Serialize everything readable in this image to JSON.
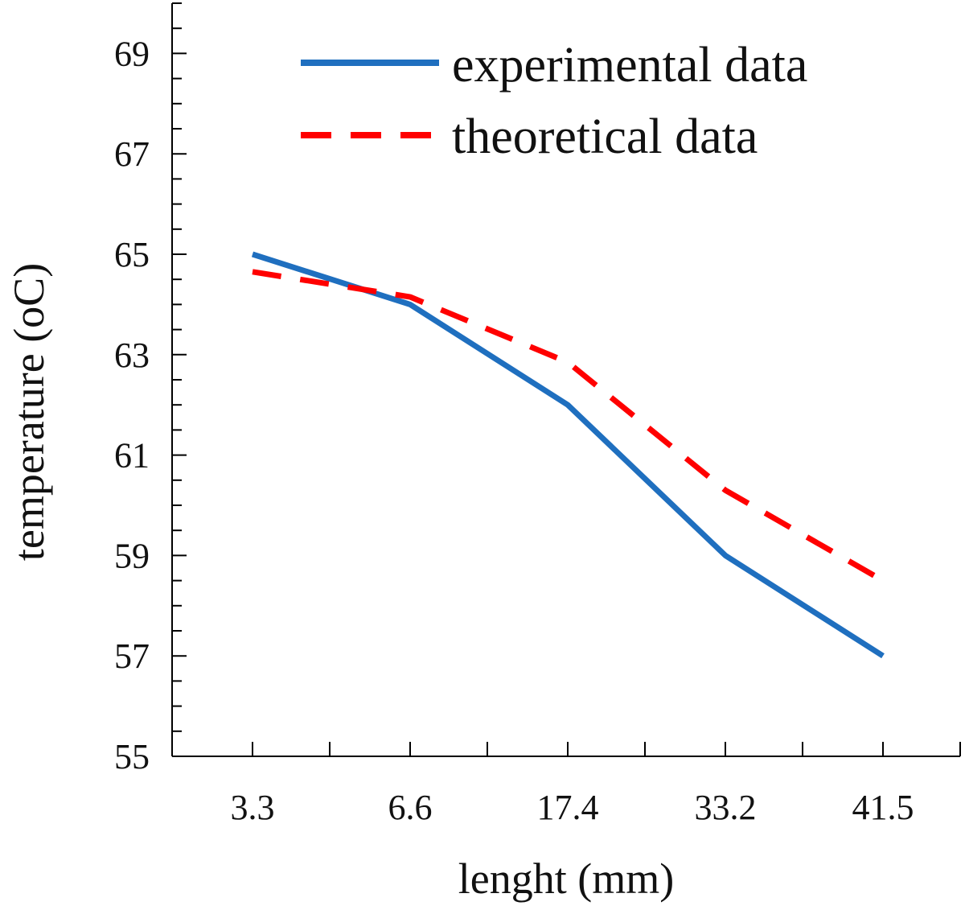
{
  "chart_data": {
    "type": "line",
    "categories": [
      "3.3",
      "6.6",
      "17.4",
      "33.2",
      "41.5"
    ],
    "xlabel": "lenght (mm)",
    "ylabel": "temperature (oC)",
    "ylim": [
      55,
      70
    ],
    "yticks": [
      55,
      57,
      59,
      61,
      63,
      65,
      67,
      69
    ],
    "grid": false,
    "legend_position": "top-right",
    "series": [
      {
        "name": "experimental data",
        "color": "#1f6fbf",
        "style": "solid",
        "x": [
          3.3,
          6.6,
          17.4,
          33.2,
          41.5
        ],
        "values": [
          65.0,
          64.0,
          62.0,
          59.0,
          57.0
        ]
      },
      {
        "name": "theoretical data",
        "color": "#ff0000",
        "style": "dashed",
        "x": [
          3.3,
          6.6,
          17.4,
          33.2,
          41.5
        ],
        "values": [
          64.65,
          64.15,
          62.85,
          60.3,
          58.5
        ]
      }
    ]
  }
}
